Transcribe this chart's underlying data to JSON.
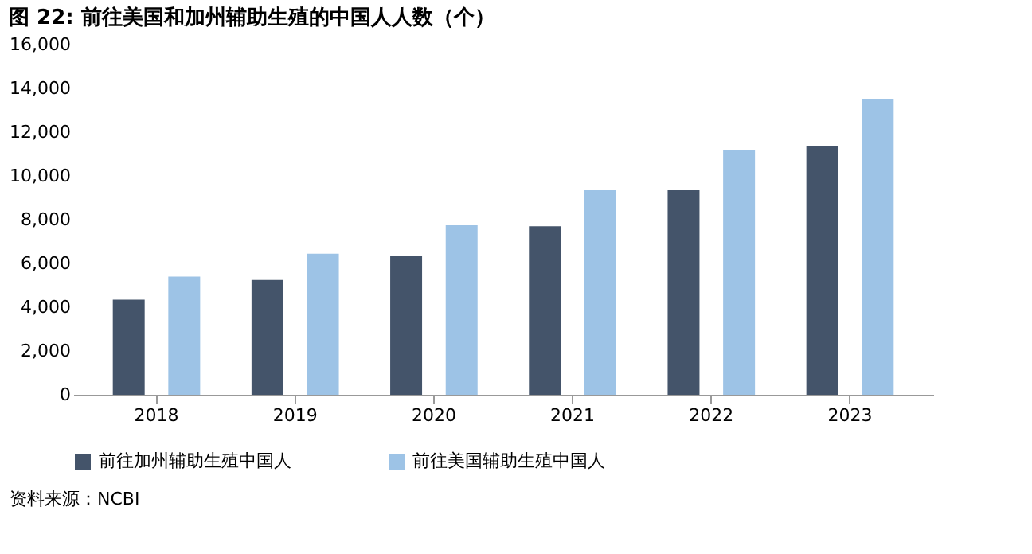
{
  "chart_data": {
    "type": "bar",
    "title": "图 22:  前往美国和加州辅助生殖的中国人人数（个）",
    "categories": [
      "2018",
      "2019",
      "2020",
      "2021",
      "2022",
      "2023"
    ],
    "series": [
      {
        "name": "前往加州辅助生殖中国人",
        "color": "#44546a",
        "values": [
          4350,
          5250,
          6350,
          7700,
          9350,
          11350
        ]
      },
      {
        "name": "前往美国辅助生殖中国人",
        "color": "#9dc3e6",
        "values": [
          5400,
          6450,
          7750,
          9350,
          11200,
          13500
        ]
      }
    ],
    "ylim": [
      0,
      16000
    ],
    "yticks": [
      0,
      {
        "value": 2000,
        "label": "2,000"
      },
      {
        "value": 4000,
        "label": "4,000"
      },
      {
        "value": 6000,
        "label": "6,000"
      },
      {
        "value": 8000,
        "label": "8,000"
      },
      {
        "value": 10000,
        "label": "10,000"
      },
      {
        "value": 12000,
        "label": "12,000"
      },
      {
        "value": 14000,
        "label": "14,000"
      },
      {
        "value": 16000,
        "label": "16,000"
      }
    ],
    "grid": false,
    "legend": "bottom",
    "annotations": [
      "资料来源：NCBI"
    ]
  }
}
